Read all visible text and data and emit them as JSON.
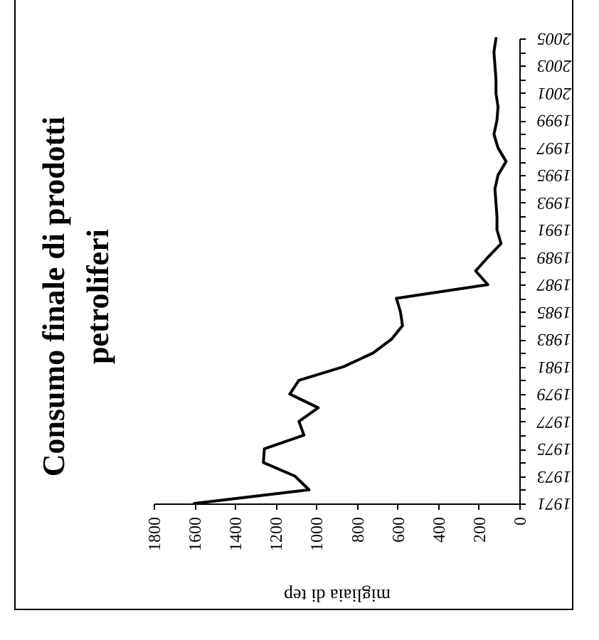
{
  "chart_data": {
    "type": "line",
    "orientation": "horizontal",
    "title": "Consumo finale di prodotti petroliferi",
    "xlabel": "migliaia di tep",
    "x": [
      1971,
      1972,
      1973,
      1974,
      1975,
      1976,
      1977,
      1978,
      1979,
      1980,
      1981,
      1982,
      1983,
      1984,
      1985,
      1986,
      1987,
      1988,
      1989,
      1990,
      1991,
      1992,
      1993,
      1994,
      1995,
      1996,
      1997,
      1998,
      1999,
      2000,
      2001,
      2002,
      2003,
      2004,
      2005
    ],
    "values": [
      1600,
      1035,
      1105,
      1260,
      1255,
      1060,
      1085,
      990,
      1130,
      1085,
      865,
      720,
      630,
      575,
      585,
      605,
      155,
      215,
      155,
      90,
      110,
      110,
      115,
      120,
      105,
      65,
      105,
      125,
      110,
      105,
      115,
      115,
      120,
      125,
      115
    ],
    "color": "#000000",
    "xlim": [
      1800,
      0
    ],
    "xticks": [
      1800,
      1600,
      1400,
      1200,
      1000,
      800,
      600,
      400,
      200,
      0
    ],
    "ylim": [
      1971,
      2005
    ],
    "yticks": [
      1971,
      {
        "value": 1972,
        "label": null
      },
      1973,
      {
        "value": 1974,
        "label": null
      },
      1975,
      {
        "value": 1976,
        "label": null
      },
      1977,
      {
        "value": 1978,
        "label": null
      },
      1979,
      {
        "value": 1980,
        "label": null
      },
      1981,
      {
        "value": 1982,
        "label": null
      },
      1983,
      {
        "value": 1984,
        "label": null
      },
      1985,
      {
        "value": 1986,
        "label": null
      },
      1987,
      {
        "value": 1988,
        "label": null
      },
      1989,
      {
        "value": 1990,
        "label": null
      },
      1991,
      {
        "value": 1992,
        "label": null
      },
      1993,
      {
        "value": 1994,
        "label": null
      },
      1995,
      {
        "value": 1996,
        "label": null
      },
      1997,
      {
        "value": 1998,
        "label": null
      },
      1999,
      {
        "value": 2000,
        "label": null
      },
      2001,
      {
        "value": 2002,
        "label": null
      },
      2003,
      {
        "value": 2004,
        "label": null
      },
      2005
    ]
  }
}
